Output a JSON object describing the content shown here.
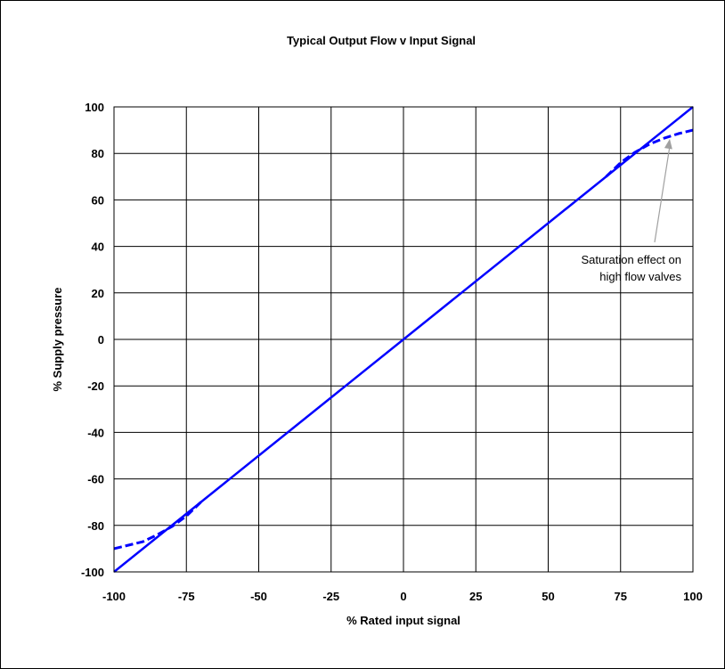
{
  "chart_data": {
    "type": "line",
    "title": "Typical Output Flow v Input Signal",
    "xlabel": "% Rated input signal",
    "ylabel": "% Supply pressure",
    "xlim": [
      -100,
      100
    ],
    "ylim": [
      -100,
      100
    ],
    "xticks": [
      "-100",
      "-75",
      "-50",
      "-25",
      "0",
      "25",
      "50",
      "75",
      "100"
    ],
    "yticks": [
      "100",
      "80",
      "60",
      "40",
      "20",
      "0",
      "-20",
      "-40",
      "-60",
      "-80",
      "-100"
    ],
    "grid": true,
    "series": [
      {
        "style": "solid",
        "color": "#0000ff",
        "x": [
          -100,
          100
        ],
        "y": [
          -100,
          100
        ]
      },
      {
        "style": "dashed",
        "color": "#0000ff",
        "x": [
          -100,
          -90,
          -85,
          -80,
          -75,
          -70
        ],
        "y": [
          -90,
          -87,
          -84,
          -80.5,
          -76,
          -70
        ]
      },
      {
        "style": "dashed",
        "color": "#0000ff",
        "x": [
          70,
          75,
          80,
          85,
          90,
          95,
          100
        ],
        "y": [
          70,
          76,
          80.5,
          84,
          86.5,
          88.5,
          90
        ]
      }
    ],
    "annotation": {
      "text_line1": "Saturation effect on",
      "text_line2": "high flow valves",
      "arrow_color": "#a0a0a0",
      "target_x": 92,
      "target_y": 87
    }
  }
}
